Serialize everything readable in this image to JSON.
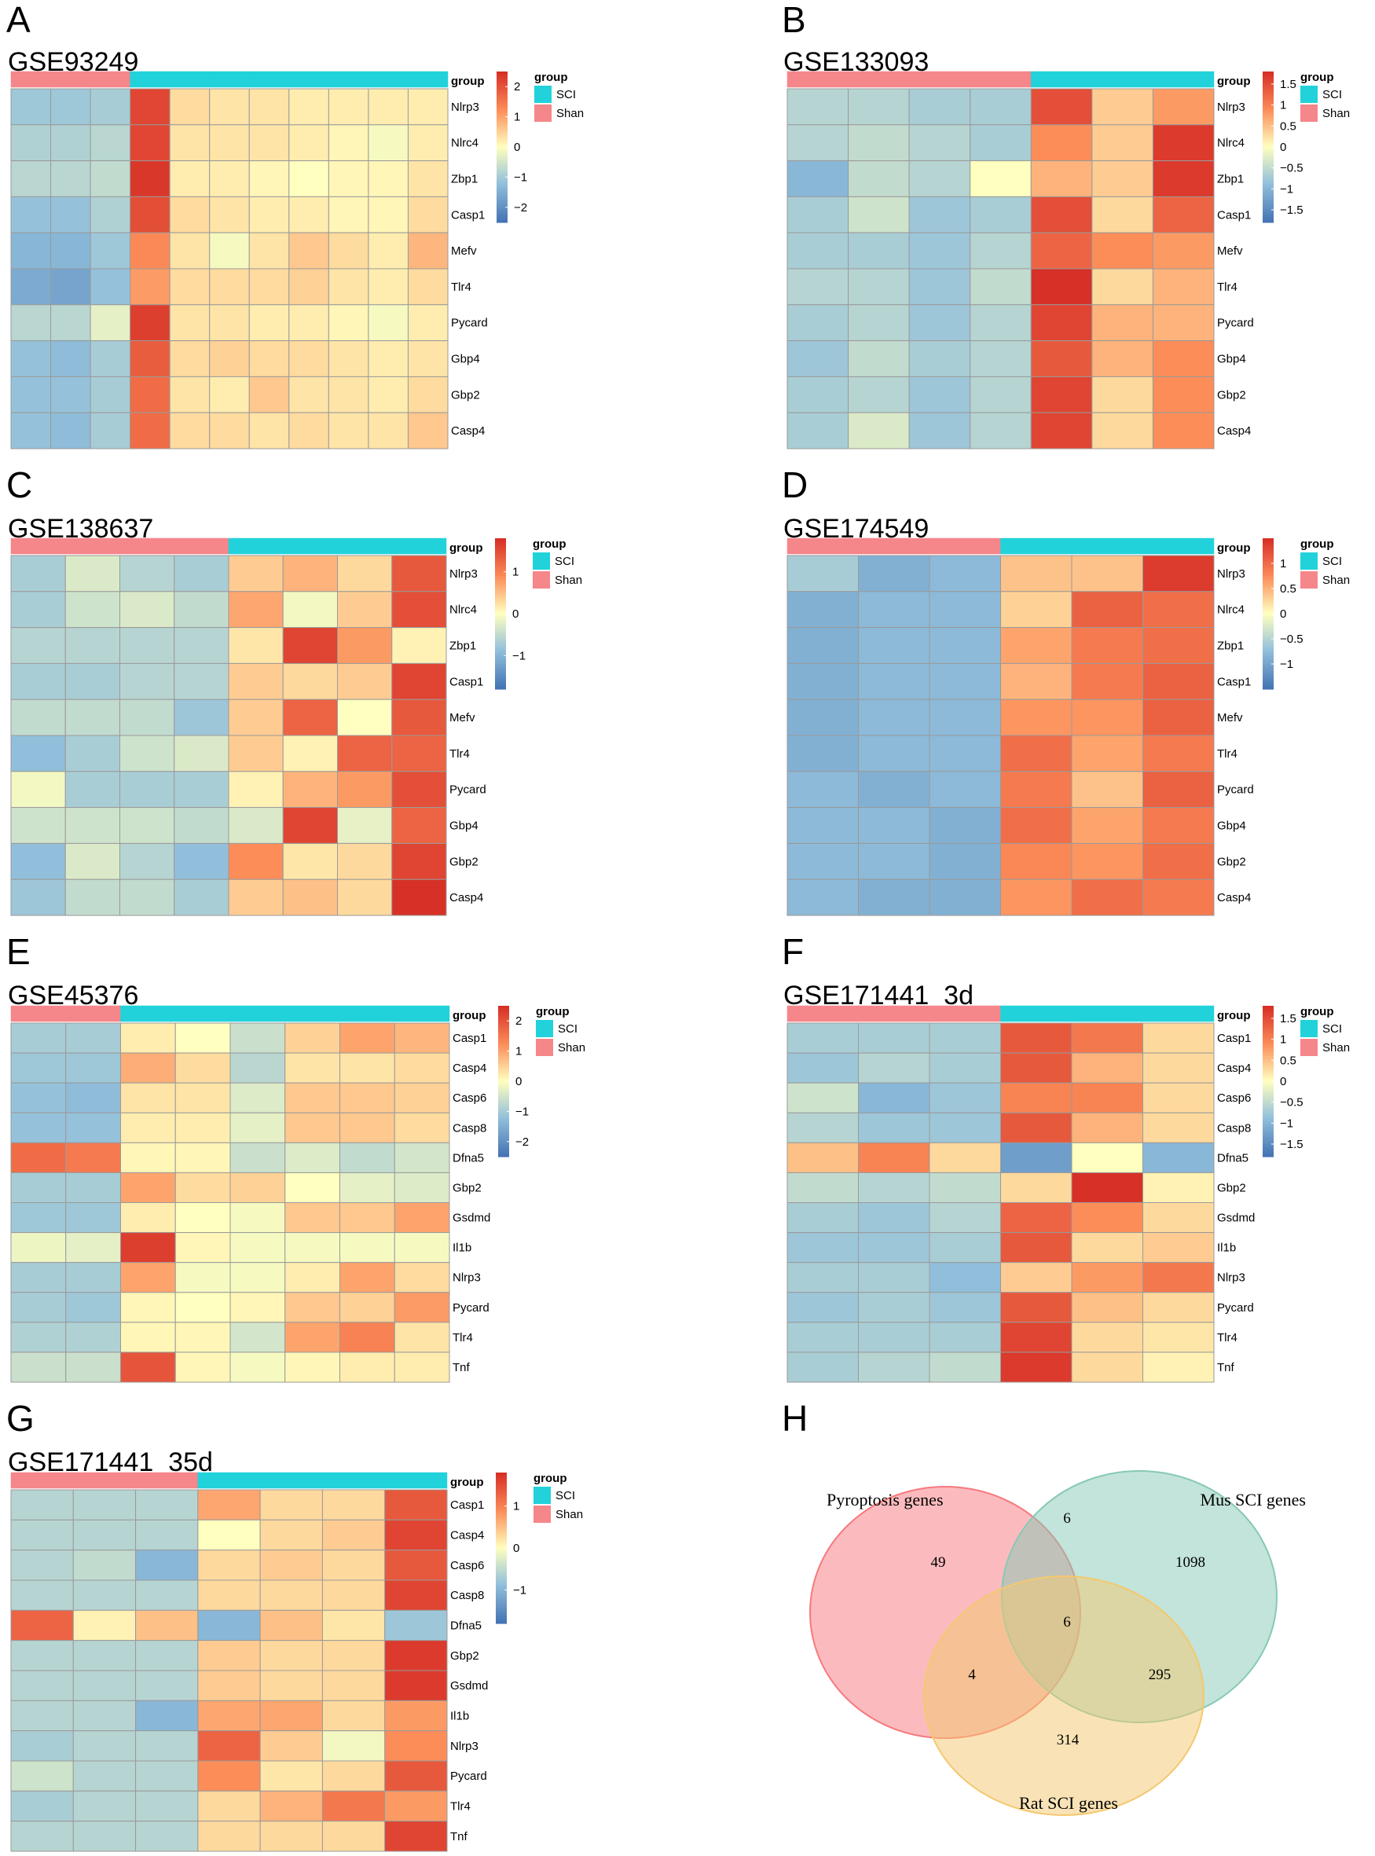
{
  "common": {
    "group_header": "group",
    "legend_title": "group",
    "legend_items": [
      {
        "name": "SCI",
        "color": "#22D2DA"
      },
      {
        "name": "Shan",
        "color": "#F5868A"
      }
    ],
    "colors": {
      "low": "#4575B4",
      "low_mid": "#91BFDB",
      "mid": "#FFFFBF",
      "high_mid": "#FC8D59",
      "high": "#D73027",
      "grid": "#9a9a9a",
      "shan": "#F5868A",
      "sci": "#22D2DA"
    }
  },
  "chart_data": [
    {
      "type": "heatmap",
      "panel": "A",
      "title": "GSE93249",
      "n_shan": 3,
      "n_sci": 8,
      "range": [
        -2.5,
        2.5
      ],
      "scale_ticks": [
        {
          "v": 2,
          "t": "2"
        },
        {
          "v": 1,
          "t": "1"
        },
        {
          "v": 0,
          "t": "0"
        },
        {
          "v": -1,
          "t": "−1"
        },
        {
          "v": -2,
          "t": "−2"
        }
      ],
      "rows": [
        "Nlrp3",
        "Nlrc4",
        "Zbp1",
        "Casp1",
        "Mefv",
        "Tlr4",
        "Pycard",
        "Gbp4",
        "Gbp2",
        "Casp4"
      ],
      "values": [
        [
          -1.1,
          -1.1,
          -1.0,
          2.2,
          0.4,
          0.3,
          0.3,
          0.2,
          0.2,
          0.2,
          0.2
        ],
        [
          -0.9,
          -0.9,
          -0.8,
          2.2,
          0.3,
          0.3,
          0.3,
          0.2,
          0.1,
          -0.1,
          0.2
        ],
        [
          -0.8,
          -0.8,
          -0.7,
          2.4,
          0.2,
          0.2,
          0.1,
          0.0,
          0.1,
          0.1,
          0.3
        ],
        [
          -1.2,
          -1.2,
          -0.9,
          2.1,
          0.4,
          0.3,
          0.2,
          0.2,
          0.1,
          0.1,
          0.4
        ],
        [
          -1.4,
          -1.4,
          -1.1,
          1.3,
          0.3,
          -0.1,
          0.3,
          0.6,
          0.4,
          0.2,
          0.8
        ],
        [
          -1.6,
          -1.7,
          -1.2,
          1.1,
          0.4,
          0.4,
          0.4,
          0.5,
          0.3,
          0.2,
          0.4
        ],
        [
          -0.8,
          -0.8,
          -0.3,
          2.3,
          0.3,
          0.3,
          0.2,
          0.2,
          0.1,
          -0.1,
          0.2
        ],
        [
          -1.2,
          -1.3,
          -1.0,
          1.9,
          0.4,
          0.5,
          0.4,
          0.4,
          0.3,
          0.2,
          0.3
        ],
        [
          -1.2,
          -1.2,
          -1.0,
          1.7,
          0.3,
          0.2,
          0.6,
          0.3,
          0.3,
          0.2,
          0.4
        ],
        [
          -1.2,
          -1.3,
          -1.0,
          1.7,
          0.4,
          0.4,
          0.3,
          0.4,
          0.3,
          0.3,
          0.6
        ]
      ]
    },
    {
      "type": "heatmap",
      "panel": "B",
      "title": "GSE133093",
      "n_shan": 4,
      "n_sci": 3,
      "range": [
        -1.8,
        1.8
      ],
      "scale_ticks": [
        {
          "v": 1.5,
          "t": "1.5"
        },
        {
          "v": 1,
          "t": "1"
        },
        {
          "v": 0.5,
          "t": "0.5"
        },
        {
          "v": 0,
          "t": "0"
        },
        {
          "v": -0.5,
          "t": "−0.5"
        },
        {
          "v": -1,
          "t": "−1"
        },
        {
          "v": -1.5,
          "t": "−1.5"
        }
      ],
      "rows": [
        "Nlrp3",
        "Nlrc4",
        "Zbp1",
        "Casp1",
        "Mefv",
        "Tlr4",
        "Pycard",
        "Gbp4",
        "Gbp2",
        "Casp4"
      ],
      "values": [
        [
          -0.6,
          -0.6,
          -0.7,
          -0.7,
          1.5,
          0.4,
          0.8
        ],
        [
          -0.6,
          -0.5,
          -0.6,
          -0.7,
          0.9,
          0.4,
          1.7
        ],
        [
          -1.0,
          -0.5,
          -0.6,
          0.0,
          0.6,
          0.4,
          1.7
        ],
        [
          -0.7,
          -0.4,
          -0.8,
          -0.7,
          1.5,
          0.3,
          1.3
        ],
        [
          -0.7,
          -0.7,
          -0.8,
          -0.6,
          1.3,
          0.9,
          0.8
        ],
        [
          -0.6,
          -0.6,
          -0.8,
          -0.5,
          1.8,
          0.3,
          0.6
        ],
        [
          -0.7,
          -0.6,
          -0.8,
          -0.6,
          1.6,
          0.6,
          0.6
        ],
        [
          -0.8,
          -0.5,
          -0.7,
          -0.6,
          1.4,
          0.6,
          0.9
        ],
        [
          -0.7,
          -0.6,
          -0.8,
          -0.6,
          1.6,
          0.3,
          0.9
        ],
        [
          -0.7,
          -0.3,
          -0.8,
          -0.6,
          1.6,
          0.3,
          0.9
        ]
      ]
    },
    {
      "type": "heatmap",
      "panel": "C",
      "title": "GSE138637",
      "n_shan": 4,
      "n_sci": 4,
      "range": [
        -1.8,
        1.8
      ],
      "scale_ticks": [
        {
          "v": 1,
          "t": "1"
        },
        {
          "v": 0,
          "t": "0"
        },
        {
          "v": -1,
          "t": "−1"
        }
      ],
      "rows": [
        "Nlrp3",
        "Nlrc4",
        "Zbp1",
        "Casp1",
        "Mefv",
        "Tlr4",
        "Pycard",
        "Gbp4",
        "Gbp2",
        "Casp4"
      ],
      "values": [
        [
          -0.7,
          -0.3,
          -0.6,
          -0.7,
          0.4,
          0.6,
          0.3,
          1.4
        ],
        [
          -0.7,
          -0.4,
          -0.3,
          -0.5,
          0.7,
          -0.1,
          0.4,
          1.5
        ],
        [
          -0.6,
          -0.6,
          -0.6,
          -0.6,
          0.2,
          1.6,
          0.8,
          0.1
        ],
        [
          -0.7,
          -0.7,
          -0.6,
          -0.6,
          0.4,
          0.3,
          0.4,
          1.6
        ],
        [
          -0.5,
          -0.5,
          -0.5,
          -0.8,
          0.4,
          1.3,
          0.0,
          1.4
        ],
        [
          -0.9,
          -0.7,
          -0.4,
          -0.3,
          0.4,
          0.1,
          1.3,
          1.3
        ],
        [
          -0.1,
          -0.7,
          -0.7,
          -0.7,
          0.1,
          0.6,
          0.8,
          1.5
        ],
        [
          -0.4,
          -0.4,
          -0.4,
          -0.5,
          -0.3,
          1.6,
          -0.2,
          1.3
        ],
        [
          -0.9,
          -0.3,
          -0.6,
          -0.9,
          0.9,
          0.2,
          0.3,
          1.6
        ],
        [
          -0.8,
          -0.5,
          -0.5,
          -0.7,
          0.4,
          0.5,
          0.3,
          1.8
        ]
      ]
    },
    {
      "type": "heatmap",
      "panel": "D",
      "title": "GSE174549",
      "n_shan": 3,
      "n_sci": 3,
      "range": [
        -1.5,
        1.5
      ],
      "scale_ticks": [
        {
          "v": 1,
          "t": "1"
        },
        {
          "v": 0.5,
          "t": "0.5"
        },
        {
          "v": 0,
          "t": "0"
        },
        {
          "v": -0.5,
          "t": "−0.5"
        },
        {
          "v": -1,
          "t": "−1"
        }
      ],
      "rows": [
        "Nlrp3",
        "Nlrc4",
        "Zbp1",
        "Casp1",
        "Mefv",
        "Tlr4",
        "Pycard",
        "Gbp4",
        "Gbp2",
        "Casp4"
      ],
      "values": [
        [
          -0.6,
          -0.9,
          -0.8,
          0.4,
          0.4,
          1.4
        ],
        [
          -0.9,
          -0.8,
          -0.8,
          0.3,
          1.1,
          1.0
        ],
        [
          -0.9,
          -0.8,
          -0.8,
          0.6,
          0.9,
          1.0
        ],
        [
          -0.9,
          -0.8,
          -0.8,
          0.5,
          0.9,
          1.1
        ],
        [
          -0.9,
          -0.8,
          -0.8,
          0.7,
          0.7,
          1.1
        ],
        [
          -0.9,
          -0.8,
          -0.8,
          1.0,
          0.6,
          0.9
        ],
        [
          -0.8,
          -0.9,
          -0.8,
          0.9,
          0.4,
          1.1
        ],
        [
          -0.8,
          -0.8,
          -0.9,
          1.0,
          0.6,
          0.9
        ],
        [
          -0.8,
          -0.8,
          -0.9,
          0.8,
          0.7,
          1.0
        ],
        [
          -0.8,
          -0.9,
          -0.9,
          0.7,
          1.0,
          0.9
        ]
      ]
    },
    {
      "type": "heatmap",
      "panel": "E",
      "title": "GSE45376",
      "n_shan": 2,
      "n_sci": 6,
      "range": [
        -2.5,
        2.5
      ],
      "scale_ticks": [
        {
          "v": 2,
          "t": "2"
        },
        {
          "v": 1,
          "t": "1"
        },
        {
          "v": 0,
          "t": "0"
        },
        {
          "v": -1,
          "t": "−1"
        },
        {
          "v": -2,
          "t": "−2"
        }
      ],
      "rows": [
        "Casp1",
        "Casp4",
        "Casp6",
        "Casp8",
        "Dfna5",
        "Gbp2",
        "Gsdmd",
        "Il1b",
        "Nlrp3",
        "Pycard",
        "Tlr4",
        "Tnf"
      ],
      "values": [
        [
          -1.0,
          -1.0,
          0.2,
          0.0,
          -0.6,
          0.5,
          1.0,
          0.8
        ],
        [
          -1.1,
          -1.1,
          0.9,
          0.4,
          -0.8,
          0.3,
          0.3,
          0.4
        ],
        [
          -1.2,
          -1.3,
          0.3,
          0.3,
          -0.4,
          0.6,
          0.6,
          0.5
        ],
        [
          -1.2,
          -1.2,
          0.2,
          0.2,
          -0.3,
          0.6,
          0.6,
          0.4
        ],
        [
          1.7,
          1.5,
          0.1,
          0.1,
          -0.6,
          -0.4,
          -0.7,
          -0.5
        ],
        [
          -1.0,
          -1.0,
          1.0,
          0.4,
          0.5,
          0.0,
          -0.3,
          -0.4
        ],
        [
          -1.1,
          -1.1,
          0.2,
          0.0,
          -0.1,
          0.6,
          0.6,
          1.0
        ],
        [
          -0.2,
          -0.3,
          2.3,
          0.1,
          -0.1,
          -0.1,
          -0.1,
          -0.1
        ],
        [
          -1.0,
          -1.0,
          1.0,
          -0.1,
          -0.1,
          0.2,
          1.0,
          0.4
        ],
        [
          -1.0,
          -1.1,
          0.1,
          0.0,
          0.1,
          0.6,
          0.5,
          1.1
        ],
        [
          -0.9,
          -0.9,
          0.1,
          0.1,
          -0.5,
          1.0,
          1.4,
          0.3
        ],
        [
          -0.6,
          -0.6,
          2.0,
          0.1,
          -0.1,
          0.1,
          0.2,
          0.2
        ]
      ]
    },
    {
      "type": "heatmap",
      "panel": "F",
      "title": "GSE171441_3d",
      "n_shan": 3,
      "n_sci": 3,
      "range": [
        -1.8,
        1.8
      ],
      "scale_ticks": [
        {
          "v": 1.5,
          "t": "1.5"
        },
        {
          "v": 1,
          "t": "1"
        },
        {
          "v": 0.5,
          "t": "0.5"
        },
        {
          "v": 0,
          "t": "0"
        },
        {
          "v": -0.5,
          "t": "−0.5"
        },
        {
          "v": -1,
          "t": "−1"
        },
        {
          "v": -1.5,
          "t": "−1.5"
        }
      ],
      "rows": [
        "Casp1",
        "Casp4",
        "Casp6",
        "Casp8",
        "Dfna5",
        "Gbp2",
        "Gsdmd",
        "Il1b",
        "Nlrp3",
        "Pycard",
        "Tlr4",
        "Tnf"
      ],
      "values": [
        [
          -0.7,
          -0.7,
          -0.7,
          1.4,
          1.1,
          0.3
        ],
        [
          -0.8,
          -0.6,
          -0.7,
          1.4,
          0.6,
          0.3
        ],
        [
          -0.4,
          -1.0,
          -0.8,
          1.0,
          1.0,
          0.3
        ],
        [
          -0.6,
          -0.8,
          -0.8,
          1.4,
          0.6,
          0.3
        ],
        [
          0.5,
          1.0,
          0.3,
          -1.3,
          0.0,
          -1.0
        ],
        [
          -0.5,
          -0.6,
          -0.5,
          0.3,
          1.8,
          0.1
        ],
        [
          -0.7,
          -0.8,
          -0.6,
          1.3,
          0.9,
          0.3
        ],
        [
          -0.8,
          -0.8,
          -0.7,
          1.4,
          0.3,
          0.4
        ],
        [
          -0.7,
          -0.7,
          -0.9,
          0.4,
          0.8,
          1.1
        ],
        [
          -0.8,
          -0.7,
          -0.8,
          1.4,
          0.5,
          0.3
        ],
        [
          -0.7,
          -0.7,
          -0.7,
          1.6,
          0.3,
          0.2
        ],
        [
          -0.7,
          -0.6,
          -0.5,
          1.7,
          0.3,
          0.1
        ]
      ]
    },
    {
      "type": "heatmap",
      "panel": "G",
      "title": "GSE171441_35d",
      "n_shan": 3,
      "n_sci": 4,
      "range": [
        -1.8,
        1.8
      ],
      "scale_ticks": [
        {
          "v": 1,
          "t": "1"
        },
        {
          "v": 0,
          "t": "0"
        },
        {
          "v": -1,
          "t": "−1"
        }
      ],
      "rows": [
        "Casp1",
        "Casp4",
        "Casp6",
        "Casp8",
        "Dfna5",
        "Gbp2",
        "Gsdmd",
        "Il1b",
        "Nlrp3",
        "Pycard",
        "Tlr4",
        "Tnf"
      ],
      "values": [
        [
          -0.6,
          -0.6,
          -0.6,
          0.7,
          0.3,
          0.3,
          1.4
        ],
        [
          -0.6,
          -0.6,
          -0.6,
          0.0,
          0.3,
          0.4,
          1.6
        ],
        [
          -0.6,
          -0.5,
          -1.0,
          0.3,
          0.4,
          0.3,
          1.4
        ],
        [
          -0.6,
          -0.6,
          -0.6,
          0.3,
          0.3,
          0.3,
          1.6
        ],
        [
          1.3,
          0.1,
          0.5,
          -1.0,
          0.5,
          0.2,
          -0.8
        ],
        [
          -0.6,
          -0.6,
          -0.6,
          0.4,
          0.3,
          0.3,
          1.7
        ],
        [
          -0.6,
          -0.6,
          -0.6,
          0.4,
          0.3,
          0.3,
          1.7
        ],
        [
          -0.6,
          -0.6,
          -1.0,
          0.7,
          0.7,
          0.3,
          0.8
        ],
        [
          -0.7,
          -0.6,
          -0.6,
          1.3,
          0.4,
          -0.1,
          0.9
        ],
        [
          -0.4,
          -0.6,
          -0.6,
          0.9,
          0.2,
          0.3,
          1.4
        ],
        [
          -0.7,
          -0.6,
          -0.6,
          0.3,
          0.6,
          1.1,
          0.8
        ],
        [
          -0.6,
          -0.6,
          -0.6,
          0.3,
          0.3,
          0.3,
          1.6
        ]
      ]
    },
    {
      "type": "venn",
      "panel": "H",
      "sets": [
        {
          "name": "Pyroptosis genes",
          "color": "#F8787D"
        },
        {
          "name": "Mus SCI genes",
          "color": "#86C9B5"
        },
        {
          "name": "Rat SCI genes",
          "color": "#F4C86E"
        }
      ],
      "regions": [
        {
          "sets": [
            "Pyroptosis genes"
          ],
          "count": 49
        },
        {
          "sets": [
            "Mus SCI genes"
          ],
          "count": 1098
        },
        {
          "sets": [
            "Rat SCI genes"
          ],
          "count": 314
        },
        {
          "sets": [
            "Pyroptosis genes",
            "Mus SCI genes"
          ],
          "count": 6
        },
        {
          "sets": [
            "Pyroptosis genes",
            "Rat SCI genes"
          ],
          "count": 4
        },
        {
          "sets": [
            "Mus SCI genes",
            "Rat SCI genes"
          ],
          "count": 295
        },
        {
          "sets": [
            "Pyroptosis genes",
            "Mus SCI genes",
            "Rat SCI genes"
          ],
          "count": 6
        }
      ]
    }
  ]
}
